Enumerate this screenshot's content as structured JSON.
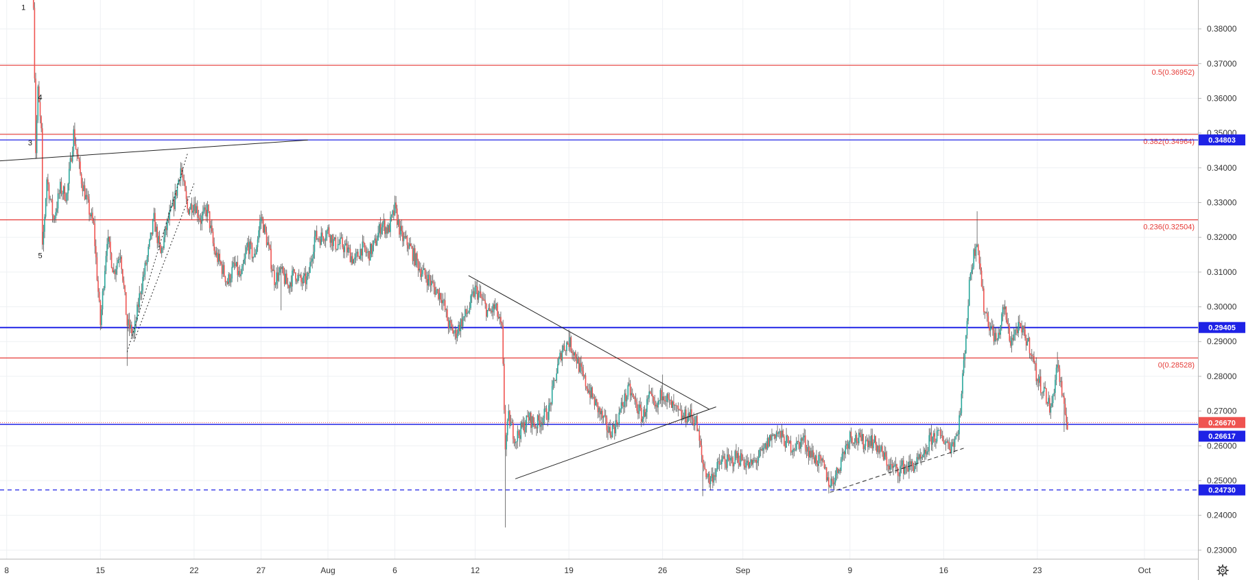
{
  "chart_data": {
    "type": "candlestick",
    "y_axis": {
      "range": [
        0.2275,
        0.3883
      ],
      "ticks": [
        "0.38000",
        "0.37000",
        "0.36000",
        "0.35000",
        "0.34000",
        "0.33000",
        "0.32000",
        "0.31000",
        "0.30000",
        "0.29000",
        "0.28000",
        "0.27000",
        "0.26000",
        "0.25000",
        "0.24000",
        "0.23000"
      ]
    },
    "x_axis": {
      "range": [
        "2019-07-07T12:00",
        "2019-10-05T00:00"
      ],
      "ticks": [
        {
          "label": "8",
          "date": "2019-07-08T00:00"
        },
        {
          "label": "15",
          "date": "2019-07-15T00:00"
        },
        {
          "label": "22",
          "date": "2019-07-22T00:00"
        },
        {
          "label": "27",
          "date": "2019-07-27T00:00"
        },
        {
          "label": "Aug",
          "date": "2019-08-01T00:00"
        },
        {
          "label": "6",
          "date": "2019-08-06T00:00"
        },
        {
          "label": "12",
          "date": "2019-08-12T00:00"
        },
        {
          "label": "19",
          "date": "2019-08-19T00:00"
        },
        {
          "label": "26",
          "date": "2019-08-26T00:00"
        },
        {
          "label": "Sep",
          "date": "2019-09-01T00:00"
        },
        {
          "label": "9",
          "date": "2019-09-09T00:00"
        },
        {
          "label": "16",
          "date": "2019-09-16T00:00"
        },
        {
          "label": "23",
          "date": "2019-09-23T00:00"
        },
        {
          "label": "Oct",
          "date": "2019-10-01T00:00"
        }
      ]
    },
    "path_points": [
      [
        "2019-07-10T00:00",
        0.3883
      ],
      [
        "2019-07-10T01:00",
        0.378
      ],
      [
        "2019-07-10T04:00",
        0.345
      ],
      [
        "2019-07-10T08:00",
        0.362
      ],
      [
        "2019-07-10T14:00",
        0.35
      ],
      [
        "2019-07-10T16:00",
        0.316
      ],
      [
        "2019-07-11T00:00",
        0.337
      ],
      [
        "2019-07-11T12:00",
        0.325
      ],
      [
        "2019-07-12T00:00",
        0.334
      ],
      [
        "2019-07-12T12:00",
        0.332
      ],
      [
        "2019-07-13T00:00",
        0.35
      ],
      [
        "2019-07-13T12:00",
        0.338
      ],
      [
        "2019-07-14T00:00",
        0.33
      ],
      [
        "2019-07-14T12:00",
        0.323
      ],
      [
        "2019-07-15T00:00",
        0.295
      ],
      [
        "2019-07-15T12:00",
        0.32
      ],
      [
        "2019-07-16T00:00",
        0.31
      ],
      [
        "2019-07-16T12:00",
        0.316
      ],
      [
        "2019-07-17T00:00",
        0.295
      ],
      [
        "2019-07-17T12:00",
        0.292
      ],
      [
        "2019-07-18T00:00",
        0.305
      ],
      [
        "2019-07-18T12:00",
        0.314
      ],
      [
        "2019-07-19T00:00",
        0.325
      ],
      [
        "2019-07-19T12:00",
        0.315
      ],
      [
        "2019-07-20T00:00",
        0.324
      ],
      [
        "2019-07-20T12:00",
        0.33
      ],
      [
        "2019-07-21T00:00",
        0.34
      ],
      [
        "2019-07-21T12:00",
        0.328
      ],
      [
        "2019-07-22T00:00",
        0.33
      ],
      [
        "2019-07-22T12:00",
        0.325
      ],
      [
        "2019-07-23T00:00",
        0.328
      ],
      [
        "2019-07-23T12:00",
        0.316
      ],
      [
        "2019-07-24T00:00",
        0.312
      ],
      [
        "2019-07-24T12:00",
        0.307
      ],
      [
        "2019-07-25T00:00",
        0.312
      ],
      [
        "2019-07-25T12:00",
        0.308
      ],
      [
        "2019-07-26T00:00",
        0.318
      ],
      [
        "2019-07-26T12:00",
        0.314
      ],
      [
        "2019-07-27T00:00",
        0.326
      ],
      [
        "2019-07-27T12:00",
        0.318
      ],
      [
        "2019-07-28T00:00",
        0.308
      ],
      [
        "2019-07-28T12:00",
        0.31
      ],
      [
        "2019-07-29T00:00",
        0.306
      ],
      [
        "2019-07-29T12:00",
        0.31
      ],
      [
        "2019-07-30T00:00",
        0.307
      ],
      [
        "2019-07-30T12:00",
        0.308
      ],
      [
        "2019-07-31T00:00",
        0.32
      ],
      [
        "2019-07-31T12:00",
        0.32
      ],
      [
        "2019-08-01T00:00",
        0.322
      ],
      [
        "2019-08-01T12:00",
        0.318
      ],
      [
        "2019-08-02T00:00",
        0.318
      ],
      [
        "2019-08-02T12:00",
        0.316
      ],
      [
        "2019-08-03T00:00",
        0.313
      ],
      [
        "2019-08-03T12:00",
        0.317
      ],
      [
        "2019-08-04T00:00",
        0.315
      ],
      [
        "2019-08-04T12:00",
        0.318
      ],
      [
        "2019-08-05T00:00",
        0.324
      ],
      [
        "2019-08-05T12:00",
        0.322
      ],
      [
        "2019-08-06T00:00",
        0.328
      ],
      [
        "2019-08-06T12:00",
        0.32
      ],
      [
        "2019-08-07T00:00",
        0.318
      ],
      [
        "2019-08-07T12:00",
        0.314
      ],
      [
        "2019-08-08T00:00",
        0.31
      ],
      [
        "2019-08-08T12:00",
        0.308
      ],
      [
        "2019-08-09T00:00",
        0.305
      ],
      [
        "2019-08-09T12:00",
        0.303
      ],
      [
        "2019-08-10T00:00",
        0.295
      ],
      [
        "2019-08-10T12:00",
        0.292
      ],
      [
        "2019-08-11T00:00",
        0.296
      ],
      [
        "2019-08-11T12:00",
        0.299
      ],
      [
        "2019-08-12T00:00",
        0.305
      ],
      [
        "2019-08-12T12:00",
        0.302
      ],
      [
        "2019-08-13T00:00",
        0.298
      ],
      [
        "2019-08-13T12:00",
        0.3
      ],
      [
        "2019-08-14T00:00",
        0.293
      ],
      [
        "2019-08-14T06:00",
        0.26
      ],
      [
        "2019-08-14T12:00",
        0.268
      ],
      [
        "2019-08-15T00:00",
        0.262
      ],
      [
        "2019-08-15T12:00",
        0.265
      ],
      [
        "2019-08-16T00:00",
        0.268
      ],
      [
        "2019-08-16T12:00",
        0.266
      ],
      [
        "2019-08-17T00:00",
        0.268
      ],
      [
        "2019-08-17T12:00",
        0.27
      ],
      [
        "2019-08-18T00:00",
        0.28
      ],
      [
        "2019-08-18T12:00",
        0.288
      ],
      [
        "2019-08-19T00:00",
        0.29
      ],
      [
        "2019-08-19T12:00",
        0.286
      ],
      [
        "2019-08-20T00:00",
        0.28
      ],
      [
        "2019-08-20T12:00",
        0.276
      ],
      [
        "2019-08-21T00:00",
        0.272
      ],
      [
        "2019-08-21T12:00",
        0.268
      ],
      [
        "2019-08-22T00:00",
        0.264
      ],
      [
        "2019-08-22T12:00",
        0.266
      ],
      [
        "2019-08-23T00:00",
        0.272
      ],
      [
        "2019-08-23T12:00",
        0.276
      ],
      [
        "2019-08-24T00:00",
        0.272
      ],
      [
        "2019-08-24T12:00",
        0.268
      ],
      [
        "2019-08-25T00:00",
        0.274
      ],
      [
        "2019-08-25T12:00",
        0.27
      ],
      [
        "2019-08-26T00:00",
        0.276
      ],
      [
        "2019-08-26T12:00",
        0.272
      ],
      [
        "2019-08-27T00:00",
        0.27
      ],
      [
        "2019-08-27T12:00",
        0.268
      ],
      [
        "2019-08-28T00:00",
        0.269
      ],
      [
        "2019-08-28T12:00",
        0.267
      ],
      [
        "2019-08-29T00:00",
        0.255
      ],
      [
        "2019-08-29T12:00",
        0.25
      ],
      [
        "2019-08-30T00:00",
        0.253
      ],
      [
        "2019-08-30T12:00",
        0.256
      ],
      [
        "2019-08-31T00:00",
        0.255
      ],
      [
        "2019-08-31T12:00",
        0.257
      ],
      [
        "2019-09-01T00:00",
        0.256
      ],
      [
        "2019-09-01T12:00",
        0.254
      ],
      [
        "2019-09-02T00:00",
        0.256
      ],
      [
        "2019-09-02T12:00",
        0.258
      ],
      [
        "2019-09-03T00:00",
        0.262
      ],
      [
        "2019-09-03T12:00",
        0.264
      ],
      [
        "2019-09-04T00:00",
        0.262
      ],
      [
        "2019-09-04T12:00",
        0.26
      ],
      [
        "2019-09-05T00:00",
        0.26
      ],
      [
        "2019-09-05T12:00",
        0.262
      ],
      [
        "2019-09-06T00:00",
        0.258
      ],
      [
        "2019-09-06T12:00",
        0.256
      ],
      [
        "2019-09-07T00:00",
        0.254
      ],
      [
        "2019-09-07T12:00",
        0.249
      ],
      [
        "2019-09-08T00:00",
        0.252
      ],
      [
        "2019-09-08T12:00",
        0.258
      ],
      [
        "2019-09-09T00:00",
        0.263
      ],
      [
        "2019-09-09T12:00",
        0.262
      ],
      [
        "2019-09-10T00:00",
        0.261
      ],
      [
        "2019-09-10T12:00",
        0.262
      ],
      [
        "2019-09-11T00:00",
        0.26
      ],
      [
        "2019-09-11T12:00",
        0.257
      ],
      [
        "2019-09-12T00:00",
        0.254
      ],
      [
        "2019-09-12T12:00",
        0.253
      ],
      [
        "2019-09-13T00:00",
        0.254
      ],
      [
        "2019-09-13T12:00",
        0.254
      ],
      [
        "2019-09-14T00:00",
        0.255
      ],
      [
        "2019-09-14T12:00",
        0.256
      ],
      [
        "2019-09-15T00:00",
        0.262
      ],
      [
        "2019-09-15T12:00",
        0.263
      ],
      [
        "2019-09-16T00:00",
        0.262
      ],
      [
        "2019-09-16T12:00",
        0.26
      ],
      [
        "2019-09-17T00:00",
        0.263
      ],
      [
        "2019-09-17T06:00",
        0.27
      ],
      [
        "2019-09-17T12:00",
        0.284
      ],
      [
        "2019-09-18T00:00",
        0.31
      ],
      [
        "2019-09-18T12:00",
        0.32
      ],
      [
        "2019-09-19T00:00",
        0.3
      ],
      [
        "2019-09-19T12:00",
        0.294
      ],
      [
        "2019-09-20T00:00",
        0.29
      ],
      [
        "2019-09-20T12:00",
        0.3
      ],
      [
        "2019-09-21T00:00",
        0.29
      ],
      [
        "2019-09-21T12:00",
        0.294
      ],
      [
        "2019-09-22T00:00",
        0.292
      ],
      [
        "2019-09-22T12:00",
        0.288
      ],
      [
        "2019-09-23T00:00",
        0.279
      ],
      [
        "2019-09-23T12:00",
        0.276
      ],
      [
        "2019-09-24T00:00",
        0.27
      ],
      [
        "2019-09-24T12:00",
        0.284
      ],
      [
        "2019-09-25T00:00",
        0.27
      ],
      [
        "2019-09-25T06:00",
        0.2667
      ]
    ],
    "spikes": [
      {
        "date": "2019-07-17T00:00",
        "low": 0.283
      },
      {
        "date": "2019-07-28T12:00",
        "low": 0.299
      },
      {
        "date": "2019-08-06T00:00",
        "high": 0.332
      },
      {
        "date": "2019-08-14T06:00",
        "low": 0.2365
      },
      {
        "date": "2019-08-19T00:00",
        "high": 0.2935
      },
      {
        "date": "2019-08-26T00:00",
        "high": 0.2805
      },
      {
        "date": "2019-08-29T00:00",
        "low": 0.2455
      },
      {
        "date": "2019-09-18T12:00",
        "high": 0.3275
      },
      {
        "date": "2019-09-24T12:00",
        "high": 0.287
      },
      {
        "date": "2019-09-25T00:00",
        "low": 0.264
      }
    ],
    "candle_colors": {
      "up": "#26a69a",
      "down": "#ef5350",
      "wick": "#555555"
    },
    "fib_levels": [
      {
        "label": "0.5(0.36952)",
        "value": 0.36952
      },
      {
        "label": "0.382(0.34964)",
        "value": 0.34964
      },
      {
        "label": "0.236(0.32504)",
        "value": 0.32504
      },
      {
        "label": "0(0.28528)",
        "value": 0.28528
      }
    ],
    "fib_color": "#e53935",
    "horizontal_lines": [
      {
        "label": "0.34803",
        "value": 0.34803,
        "style": "solid",
        "width": 1.2
      },
      {
        "label": "0.29405",
        "value": 0.29405,
        "style": "solid",
        "width": 2
      },
      {
        "label": "0.26617",
        "value": 0.26617,
        "style": "solid",
        "width": 1.4
      },
      {
        "label": "0.24730",
        "value": 0.2473,
        "style": "dashed",
        "width": 1.2
      }
    ],
    "line_color": "#1e22e6",
    "current_price": {
      "label": "0.26670",
      "value": 0.2667,
      "color": "#ef5350"
    },
    "trend_lines": [
      {
        "from": [
          "2019-07-07T12:00",
          0.342
        ],
        "to": [
          "2019-07-30T12:00",
          0.348
        ],
        "style": "solid"
      },
      {
        "from": [
          "2019-08-11T12:00",
          0.309
        ],
        "to": [
          "2019-08-29T12:00",
          0.2705
        ],
        "style": "solid"
      },
      {
        "from": [
          "2019-08-15T00:00",
          0.2505
        ],
        "to": [
          "2019-08-30T00:00",
          0.2712
        ],
        "style": "solid"
      },
      {
        "from": [
          "2019-07-17T00:00",
          0.287
        ],
        "to": [
          "2019-07-21T12:00",
          0.344
        ],
        "style": "dotted"
      },
      {
        "from": [
          "2019-07-17T12:00",
          0.29
        ],
        "to": [
          "2019-07-22T00:00",
          0.3355
        ],
        "style": "dotted"
      },
      {
        "from": [
          "2019-09-07T12:00",
          0.2466
        ],
        "to": [
          "2019-09-17T12:00",
          0.2593
        ],
        "style": "dashed"
      }
    ],
    "wave_labels": [
      {
        "label": "1",
        "date": "2019-07-09T06:00",
        "value": 0.3862
      },
      {
        "label": "4",
        "date": "2019-07-10T12:00",
        "value": 0.3604
      },
      {
        "label": "3",
        "date": "2019-07-09T18:00",
        "value": 0.3473
      },
      {
        "label": "5",
        "date": "2019-07-10T12:00",
        "value": 0.3148
      }
    ]
  }
}
